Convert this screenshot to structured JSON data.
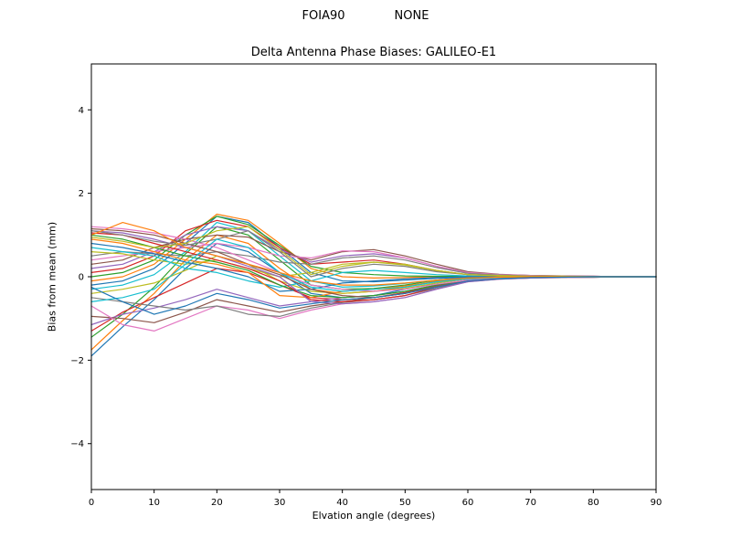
{
  "header": {
    "left": "FOIA90",
    "right": "NONE"
  },
  "chart_data": {
    "type": "line",
    "title": "Delta Antenna Phase Biases: GALILEO-E1",
    "xlabel": "Elvation angle (degrees)",
    "ylabel": "Bias from mean (mm)",
    "xlim": [
      0,
      90
    ],
    "ylim": [
      -5.1,
      5.1
    ],
    "xticks": [
      0,
      10,
      20,
      30,
      40,
      50,
      60,
      70,
      80,
      90
    ],
    "yticks": [
      -4,
      -2,
      0,
      2,
      4
    ],
    "grid": false,
    "legend": "none",
    "x": [
      0,
      5,
      10,
      15,
      20,
      25,
      30,
      35,
      40,
      45,
      50,
      55,
      60,
      65,
      70,
      75,
      80,
      85,
      90
    ],
    "series": [
      {
        "name": "s01",
        "color": "#1f77b4",
        "values": [
          -1.9,
          -1.2,
          -0.55,
          0.2,
          0.8,
          0.6,
          0.1,
          -0.4,
          -0.5,
          -0.45,
          -0.3,
          -0.15,
          -0.05,
          -0.03,
          -0.02,
          -0.01,
          -0.01,
          0,
          0
        ]
      },
      {
        "name": "s02",
        "color": "#ff7f0e",
        "values": [
          -1.75,
          -1.05,
          -0.4,
          0.4,
          1.0,
          0.8,
          0.2,
          -0.3,
          -0.4,
          -0.35,
          -0.25,
          -0.1,
          -0.03,
          -0.02,
          -0.01,
          -0.01,
          0,
          0,
          0
        ]
      },
      {
        "name": "s03",
        "color": "#2ca02c",
        "values": [
          -1.45,
          -0.9,
          -0.25,
          0.55,
          1.2,
          1.0,
          0.4,
          -0.2,
          -0.3,
          -0.28,
          -0.2,
          -0.08,
          -0.02,
          -0.01,
          -0.01,
          0,
          0,
          0,
          0
        ]
      },
      {
        "name": "s04",
        "color": "#d62728",
        "values": [
          -1.3,
          -0.85,
          -0.5,
          -0.15,
          0.2,
          0.1,
          -0.2,
          -0.5,
          -0.55,
          -0.5,
          -0.38,
          -0.2,
          -0.08,
          -0.04,
          -0.02,
          -0.01,
          -0.01,
          0,
          0
        ]
      },
      {
        "name": "s05",
        "color": "#9467bd",
        "values": [
          -1.15,
          -0.9,
          -0.75,
          -0.55,
          -0.3,
          -0.5,
          -0.7,
          -0.6,
          -0.5,
          -0.45,
          -0.35,
          -0.2,
          -0.08,
          -0.04,
          -0.02,
          -0.01,
          0,
          0,
          0
        ]
      },
      {
        "name": "s06",
        "color": "#8c564b",
        "values": [
          -0.95,
          -1.0,
          -1.1,
          -0.85,
          -0.55,
          -0.7,
          -0.85,
          -0.7,
          -0.6,
          -0.5,
          -0.4,
          -0.22,
          -0.1,
          -0.05,
          -0.03,
          -0.02,
          -0.01,
          0,
          0
        ]
      },
      {
        "name": "s07",
        "color": "#e377c2",
        "values": [
          -0.7,
          -1.15,
          -1.3,
          -1.0,
          -0.7,
          -0.8,
          -1.0,
          -0.8,
          -0.65,
          -0.6,
          -0.5,
          -0.3,
          -0.12,
          -0.06,
          -0.03,
          -0.02,
          -0.01,
          0,
          0
        ]
      },
      {
        "name": "s08",
        "color": "#7f7f7f",
        "values": [
          -0.5,
          -0.6,
          -0.7,
          -0.8,
          -0.7,
          -0.9,
          -0.95,
          -0.75,
          -0.62,
          -0.55,
          -0.45,
          -0.28,
          -0.1,
          -0.05,
          -0.03,
          -0.01,
          -0.01,
          0,
          0
        ]
      },
      {
        "name": "s09",
        "color": "#bcbd22",
        "values": [
          -0.4,
          -0.3,
          -0.15,
          0.15,
          0.5,
          0.3,
          -0.1,
          -0.35,
          -0.4,
          -0.35,
          -0.28,
          -0.15,
          -0.05,
          -0.03,
          -0.02,
          -0.01,
          0,
          0,
          0
        ]
      },
      {
        "name": "s10",
        "color": "#17becf",
        "values": [
          -0.3,
          -0.2,
          0.05,
          0.6,
          1.3,
          1.1,
          0.5,
          -0.1,
          -0.25,
          -0.22,
          -0.16,
          -0.08,
          -0.02,
          -0.01,
          0,
          0,
          0,
          0,
          0
        ]
      },
      {
        "name": "s11",
        "color": "#1f77b4",
        "values": [
          -0.2,
          -0.1,
          0.2,
          0.8,
          1.45,
          1.3,
          0.7,
          0.1,
          -0.1,
          -0.12,
          -0.08,
          -0.04,
          -0.01,
          0,
          0,
          0,
          0,
          0,
          0
        ]
      },
      {
        "name": "s12",
        "color": "#ff7f0e",
        "values": [
          -0.1,
          0,
          0.3,
          0.9,
          1.5,
          1.35,
          0.8,
          0.2,
          0,
          -0.03,
          -0.02,
          0,
          0.01,
          0.01,
          0,
          0,
          0,
          0,
          0
        ]
      },
      {
        "name": "s13",
        "color": "#2ca02c",
        "values": [
          0,
          0.1,
          0.4,
          1.0,
          1.45,
          1.25,
          0.75,
          0.25,
          0.1,
          0.05,
          0.02,
          0.01,
          0.01,
          0,
          0,
          0,
          0,
          0,
          0
        ]
      },
      {
        "name": "s14",
        "color": "#d62728",
        "values": [
          0.1,
          0.2,
          0.5,
          1.1,
          1.35,
          1.2,
          0.7,
          0.3,
          0.35,
          0.4,
          0.3,
          0.15,
          0.05,
          0.03,
          0.02,
          0.01,
          0.01,
          0,
          0
        ]
      },
      {
        "name": "s15",
        "color": "#9467bd",
        "values": [
          0.2,
          0.3,
          0.6,
          1.0,
          1.2,
          1.1,
          0.65,
          0.35,
          0.5,
          0.55,
          0.45,
          0.25,
          0.1,
          0.05,
          0.03,
          0.02,
          0.01,
          0,
          0
        ]
      },
      {
        "name": "s16",
        "color": "#8c564b",
        "values": [
          0.3,
          0.4,
          0.7,
          0.9,
          1.0,
          0.95,
          0.6,
          0.4,
          0.6,
          0.65,
          0.5,
          0.3,
          0.12,
          0.06,
          0.03,
          0.02,
          0.01,
          0,
          0
        ]
      },
      {
        "name": "s17",
        "color": "#e377c2",
        "values": [
          0.4,
          0.5,
          0.6,
          0.7,
          0.8,
          0.7,
          0.5,
          0.45,
          0.62,
          0.6,
          0.45,
          0.25,
          0.1,
          0.05,
          0.03,
          0.01,
          0.01,
          0,
          0
        ]
      },
      {
        "name": "s18",
        "color": "#7f7f7f",
        "values": [
          0.5,
          0.6,
          0.55,
          0.5,
          0.6,
          0.5,
          0.35,
          0.3,
          0.45,
          0.5,
          0.4,
          0.22,
          0.08,
          0.04,
          0.02,
          0.01,
          0,
          0,
          0
        ]
      },
      {
        "name": "s19",
        "color": "#bcbd22",
        "values": [
          0.6,
          0.55,
          0.4,
          0.3,
          0.4,
          0.2,
          0,
          0.1,
          0.3,
          0.35,
          0.28,
          0.15,
          0.05,
          0.03,
          0.01,
          0.01,
          0,
          0,
          0
        ]
      },
      {
        "name": "s20",
        "color": "#17becf",
        "values": [
          0.7,
          0.6,
          0.5,
          0.2,
          0.1,
          -0.1,
          -0.25,
          -0.1,
          0.1,
          0.15,
          0.1,
          0.05,
          0.02,
          0.01,
          0,
          0,
          0,
          0,
          0
        ]
      },
      {
        "name": "s21",
        "color": "#1f77b4",
        "values": [
          0.8,
          0.7,
          0.55,
          0.35,
          0.2,
          0,
          -0.35,
          -0.3,
          -0.15,
          -0.1,
          -0.05,
          -0.02,
          0,
          0,
          0,
          0,
          0,
          0,
          0
        ]
      },
      {
        "name": "s22",
        "color": "#ff7f0e",
        "values": [
          0.9,
          0.8,
          0.6,
          0.4,
          0.3,
          0.1,
          -0.45,
          -0.5,
          -0.35,
          -0.3,
          -0.22,
          -0.12,
          -0.05,
          -0.02,
          -0.01,
          0,
          0,
          0,
          0
        ]
      },
      {
        "name": "s23",
        "color": "#2ca02c",
        "values": [
          1.0,
          0.9,
          0.7,
          0.5,
          0.35,
          0.15,
          -0.2,
          -0.45,
          -0.5,
          -0.45,
          -0.35,
          -0.2,
          -0.08,
          -0.04,
          -0.02,
          -0.01,
          0,
          0,
          0
        ]
      },
      {
        "name": "s24",
        "color": "#d62728",
        "values": [
          1.05,
          1.0,
          0.8,
          0.6,
          0.4,
          0.2,
          -0.1,
          -0.55,
          -0.6,
          -0.55,
          -0.45,
          -0.25,
          -0.1,
          -0.05,
          -0.02,
          -0.01,
          0,
          0,
          0
        ]
      },
      {
        "name": "s25",
        "color": "#9467bd",
        "values": [
          1.1,
          1.05,
          0.9,
          0.7,
          0.5,
          0.25,
          0,
          -0.6,
          -0.65,
          -0.6,
          -0.5,
          -0.3,
          -0.12,
          -0.06,
          -0.03,
          -0.01,
          0,
          0,
          0
        ]
      },
      {
        "name": "s26",
        "color": "#8c564b",
        "values": [
          1.15,
          1.1,
          1.0,
          0.8,
          0.6,
          0.3,
          0.05,
          -0.3,
          -0.45,
          -0.5,
          -0.4,
          -0.22,
          -0.1,
          -0.05,
          -0.02,
          -0.01,
          0,
          0,
          0
        ]
      },
      {
        "name": "s27",
        "color": "#e377c2",
        "values": [
          1.2,
          1.15,
          1.05,
          0.9,
          0.7,
          0.4,
          0.1,
          -0.2,
          -0.3,
          -0.35,
          -0.3,
          -0.18,
          -0.08,
          -0.04,
          -0.02,
          -0.01,
          0,
          0,
          0
        ]
      },
      {
        "name": "s28",
        "color": "#7f7f7f",
        "values": [
          1.1,
          1.0,
          0.85,
          0.75,
          0.9,
          1.1,
          0.6,
          0,
          0.2,
          0.3,
          0.25,
          0.12,
          0.05,
          0.02,
          0.01,
          0,
          0,
          0,
          0
        ]
      },
      {
        "name": "s29",
        "color": "#bcbd22",
        "values": [
          0.95,
          0.85,
          0.7,
          0.8,
          1.1,
          1.2,
          0.65,
          0.05,
          0.25,
          0.35,
          0.3,
          0.15,
          0.05,
          0.02,
          0.01,
          0.01,
          0,
          0,
          0
        ]
      },
      {
        "name": "s30",
        "color": "#17becf",
        "values": [
          -0.6,
          -0.5,
          -0.3,
          0.3,
          0.9,
          0.7,
          0.1,
          -0.25,
          -0.35,
          -0.3,
          -0.25,
          -0.12,
          -0.05,
          -0.02,
          -0.01,
          0,
          0,
          0,
          0
        ]
      },
      {
        "name": "s31",
        "color": "#ff7f0e",
        "values": [
          1.0,
          1.3,
          1.1,
          0.7,
          0.5,
          0.3,
          0.1,
          -0.1,
          -0.2,
          -0.2,
          -0.15,
          -0.08,
          -0.03,
          -0.01,
          0,
          0,
          0,
          0,
          0
        ]
      },
      {
        "name": "s32",
        "color": "#1f77b4",
        "values": [
          -0.25,
          -0.6,
          -0.9,
          -0.7,
          -0.4,
          -0.55,
          -0.75,
          -0.65,
          -0.55,
          -0.5,
          -0.4,
          -0.25,
          -0.1,
          -0.05,
          -0.02,
          -0.01,
          0,
          0,
          0
        ]
      }
    ]
  }
}
